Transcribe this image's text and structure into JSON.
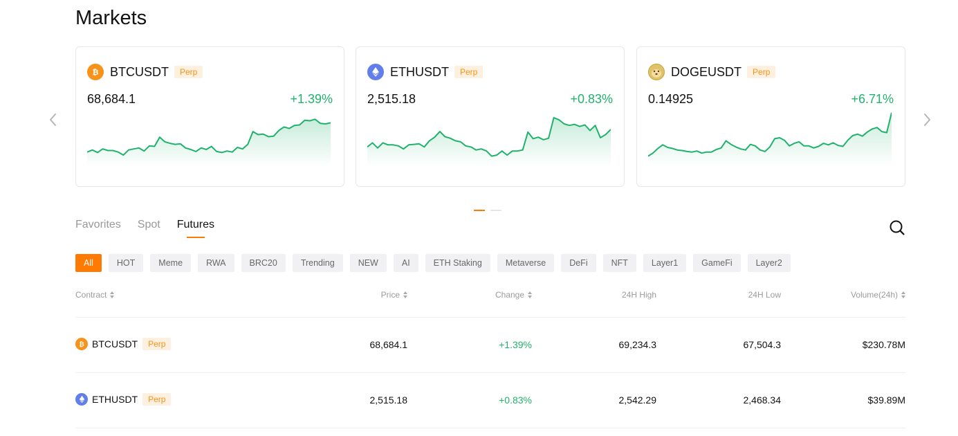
{
  "page": {
    "title": "Markets"
  },
  "colors": {
    "accent": "#ff7a00",
    "up": "#20b26c",
    "perp_text": "#f7931a",
    "perp_bg": "#fdf0de",
    "btc": "#f7931a",
    "eth": "#627eea",
    "doge": "#c2a633"
  },
  "carousel": {
    "prev_icon": "chevron-left-icon",
    "next_icon": "chevron-right-icon",
    "cards": [
      {
        "symbol": "BTCUSDT",
        "tag": "Perp",
        "icon": "btc-icon",
        "price": "68,684.1",
        "change": "+1.39%",
        "spark": [
          0.18,
          0.22,
          0.17,
          0.24,
          0.21,
          0.21,
          0.18,
          0.12,
          0.22,
          0.24,
          0.26,
          0.2,
          0.3,
          0.29,
          0.47,
          0.38,
          0.35,
          0.33,
          0.34,
          0.26,
          0.23,
          0.19,
          0.26,
          0.23,
          0.29,
          0.19,
          0.17,
          0.2,
          0.18,
          0.27,
          0.24,
          0.33,
          0.58,
          0.52,
          0.53,
          0.48,
          0.49,
          0.6,
          0.67,
          0.64,
          0.7,
          0.71,
          0.8,
          0.79,
          0.82,
          0.74,
          0.73,
          0.75
        ]
      },
      {
        "symbol": "ETHUSDT",
        "tag": "Perp",
        "icon": "eth-icon",
        "price": "2,515.18",
        "change": "+0.83%",
        "spark": [
          0.28,
          0.36,
          0.26,
          0.36,
          0.32,
          0.32,
          0.3,
          0.24,
          0.32,
          0.33,
          0.34,
          0.28,
          0.4,
          0.47,
          0.58,
          0.48,
          0.45,
          0.4,
          0.38,
          0.3,
          0.28,
          0.22,
          0.24,
          0.2,
          0.1,
          0.12,
          0.2,
          0.12,
          0.2,
          0.2,
          0.22,
          0.57,
          0.44,
          0.47,
          0.42,
          0.45,
          0.85,
          0.81,
          0.73,
          0.7,
          0.72,
          0.68,
          0.71,
          0.6,
          0.7,
          0.46,
          0.52,
          0.62
        ]
      },
      {
        "symbol": "DOGEUSDT",
        "tag": "Perp",
        "icon": "doge-icon",
        "price": "0.14925",
        "change": "+6.71%",
        "spark": [
          0.1,
          0.16,
          0.25,
          0.32,
          0.27,
          0.25,
          0.22,
          0.21,
          0.19,
          0.18,
          0.2,
          0.16,
          0.18,
          0.18,
          0.23,
          0.26,
          0.4,
          0.33,
          0.28,
          0.24,
          0.22,
          0.33,
          0.3,
          0.22,
          0.19,
          0.28,
          0.44,
          0.46,
          0.41,
          0.3,
          0.35,
          0.38,
          0.3,
          0.3,
          0.26,
          0.29,
          0.35,
          0.32,
          0.36,
          0.31,
          0.29,
          0.41,
          0.5,
          0.53,
          0.49,
          0.57,
          0.63,
          0.66,
          0.58,
          0.56,
          0.95
        ]
      }
    ],
    "pager": [
      "active",
      "inactive"
    ]
  },
  "tabs": [
    {
      "label": "Favorites",
      "active": false
    },
    {
      "label": "Spot",
      "active": false
    },
    {
      "label": "Futures",
      "active": true
    }
  ],
  "search": {
    "icon": "search-icon"
  },
  "filters": [
    "All",
    "HOT",
    "Meme",
    "RWA",
    "BRC20",
    "Trending",
    "NEW",
    "AI",
    "ETH Staking",
    "Metaverse",
    "DeFi",
    "NFT",
    "Layer1",
    "GameFi",
    "Layer2"
  ],
  "table": {
    "headers": {
      "contract": "Contract",
      "price": "Price",
      "change": "Change",
      "high": "24H High",
      "low": "24H Low",
      "volume": "Volume(24h)"
    },
    "rows": [
      {
        "symbol": "BTCUSDT",
        "tag": "Perp",
        "icon": "btc-icon",
        "price": "68,684.1",
        "change": "+1.39%",
        "high": "69,234.3",
        "low": "67,504.3",
        "volume": "$230.78M"
      },
      {
        "symbol": "ETHUSDT",
        "tag": "Perp",
        "icon": "eth-icon",
        "price": "2,515.18",
        "change": "+0.83%",
        "high": "2,542.29",
        "low": "2,468.34",
        "volume": "$39.89M"
      }
    ]
  }
}
